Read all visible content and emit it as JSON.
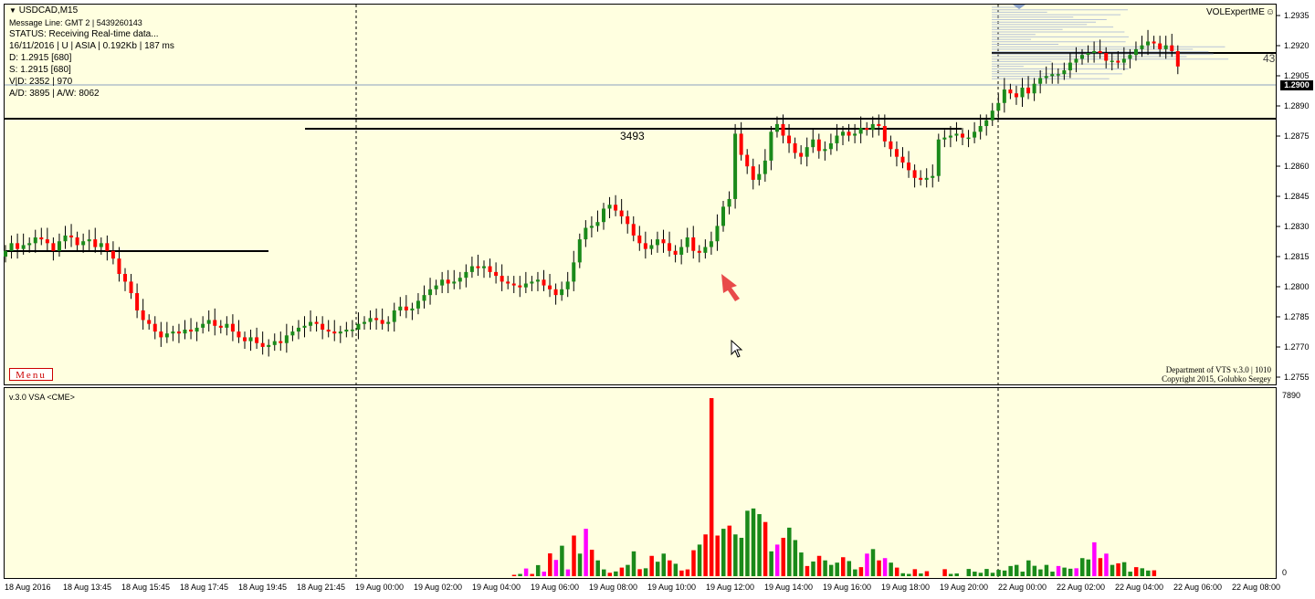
{
  "chart": {
    "symbol_title": "USDCAD,M15",
    "info_lines": [
      "Message Line: GMT 2  |  5439260143",
      "STATUS:  Receiving Real-time data...",
      "16/11/2016 | U | ASIA | 0.192Kb | 187 ms",
      "D: 1.2915  [680]",
      "S: 1.2915  [680]",
      "V|D: 2352 | 970",
      "A/D: 3895 | A/W: 8062"
    ],
    "menu_label": "Menu",
    "ea_label": "VOLExpertME",
    "credits_line1": "Department of VTS  v.3.0 | 1010",
    "credits_line2": "Copyright 2015, Golubko Sergey",
    "level_label": "3493",
    "mini_count": "43",
    "current_price": "1.2900",
    "indicator_label": "v.3.0 VSA <CME>",
    "volume_max_label": "7890",
    "volume_zero_label": "0"
  },
  "price_axis_ticks": [
    "1.2935",
    "1.2920",
    "1.2905",
    "1.2890",
    "1.2875",
    "1.2860",
    "1.2845",
    "1.2830",
    "1.2815",
    "1.2800",
    "1.2785",
    "1.2770",
    "1.2755"
  ],
  "time_axis_labels": [
    "18 Aug 2016",
    "18 Aug 13:45",
    "18 Aug 15:45",
    "18 Aug 17:45",
    "18 Aug 19:45",
    "18 Aug 21:45",
    "19 Aug 00:00",
    "19 Aug 02:00",
    "19 Aug 04:00",
    "19 Aug 06:00",
    "19 Aug 08:00",
    "19 Aug 10:00",
    "19 Aug 12:00",
    "19 Aug 14:00",
    "19 Aug 16:00",
    "19 Aug 18:00",
    "19 Aug 20:00",
    "22 Aug 00:00",
    "22 Aug 02:00",
    "22 Aug 04:00",
    "22 Aug 06:00",
    "22 Aug 08:00"
  ],
  "colors": {
    "bull": "#1a8a1a",
    "bear": "#ff0000",
    "climax": "#ff00ff",
    "background": "#ffffe0",
    "arrow": "#e84a4a"
  },
  "chart_data": {
    "type": "candlestick",
    "price_range": [
      1.2748,
      1.2941
    ],
    "closes": [
      1.2818,
      1.2822,
      1.2819,
      1.2821,
      1.2822,
      1.2825,
      1.2824,
      1.2822,
      1.2818,
      1.2823,
      1.2826,
      1.2825,
      1.2821,
      1.2823,
      1.2824,
      1.282,
      1.2822,
      1.2818,
      1.2814,
      1.2806,
      1.2802,
      1.2796,
      1.2787,
      1.2782,
      1.278,
      1.2776,
      1.2773,
      1.2775,
      1.2776,
      1.2775,
      1.2777,
      1.2776,
      1.2778,
      1.278,
      1.2782,
      1.2779,
      1.2778,
      1.278,
      1.2776,
      1.2773,
      1.2771,
      1.2773,
      1.277,
      1.2768,
      1.2769,
      1.2771,
      1.277,
      1.2774,
      1.2776,
      1.2778,
      1.2779,
      1.2781,
      1.278,
      1.2777,
      1.2776,
      1.2775,
      1.2776,
      1.2777,
      1.2777,
      1.278,
      1.2781,
      1.2783,
      1.2782,
      1.278,
      1.2781,
      1.2787,
      1.2789,
      1.2787,
      1.2788,
      1.2792,
      1.2795,
      1.2798,
      1.28,
      1.2803,
      1.2801,
      1.2802,
      1.2804,
      1.2807,
      1.281,
      1.2809,
      1.281,
      1.2807,
      1.2805,
      1.2802,
      1.2801,
      1.28,
      1.2799,
      1.2801,
      1.2802,
      1.2803,
      1.28,
      1.2798,
      1.2795,
      1.2798,
      1.2802,
      1.2812,
      1.2824,
      1.283,
      1.2831,
      1.2833,
      1.284,
      1.2842,
      1.2839,
      1.2836,
      1.2832,
      1.2826,
      1.2822,
      1.2819,
      1.2821,
      1.2824,
      1.2822,
      1.2818,
      1.2816,
      1.282,
      1.2825,
      1.2818,
      1.2817,
      1.282,
      1.2823,
      1.2831,
      1.2841,
      1.2845,
      1.2879,
      1.2868,
      1.2862,
      1.2855,
      1.2858,
      1.2865,
      1.288,
      1.2884,
      1.2878,
      1.2874,
      1.2869,
      1.2867,
      1.2872,
      1.2876,
      1.287,
      1.2871,
      1.2874,
      1.2878,
      1.288,
      1.2878,
      1.2879,
      1.2882,
      1.2881,
      1.2884,
      1.2883,
      1.2875,
      1.2871,
      1.2867,
      1.2864,
      1.286,
      1.2856,
      1.2855,
      1.2856,
      1.2857,
      1.2876,
      1.2877,
      1.2878,
      1.2879,
      1.2877,
      1.2877,
      1.288,
      1.2883,
      1.2886,
      1.2891,
      1.2895,
      1.2902,
      1.29,
      1.2898,
      1.2903,
      1.29,
      1.2905,
      1.2908,
      1.2909,
      1.291,
      1.291,
      1.2912,
      1.2916,
      1.2918,
      1.292,
      1.2921,
      1.2922,
      1.2921,
      1.2917,
      1.2917,
      1.2916,
      1.2918,
      1.292,
      1.2923,
      1.2925,
      1.2927,
      1.2926,
      1.2923,
      1.2925,
      1.2922,
      1.2914
    ],
    "volumes": [
      0,
      0,
      0,
      0,
      0,
      0,
      0,
      0,
      0,
      0,
      0,
      0,
      0,
      0,
      0,
      0,
      0,
      0,
      0,
      0,
      0,
      0,
      0,
      0,
      0,
      0,
      0,
      0,
      0,
      0,
      0,
      0,
      0,
      0,
      0,
      0,
      0,
      0,
      0,
      0,
      0,
      0,
      0,
      0,
      0,
      0,
      0,
      0,
      0,
      0,
      0,
      0,
      0,
      0,
      0,
      0,
      0,
      0,
      0,
      0,
      0,
      0,
      0,
      0,
      0,
      0,
      0,
      0,
      0,
      0,
      0,
      0,
      0,
      0,
      0,
      0,
      0,
      0,
      0,
      0,
      0,
      0,
      0,
      0,
      0,
      60,
      100,
      340,
      100,
      490,
      200,
      1010,
      720,
      1350,
      300,
      1800,
      1000,
      2100,
      1170,
      700,
      300,
      150,
      210,
      380,
      500,
      1100,
      310,
      350,
      900,
      640,
      1000,
      700,
      550,
      250,
      300,
      1150,
      1400,
      1850,
      7890,
      1800,
      2100,
      2240,
      1850,
      1700,
      2900,
      3000,
      2750,
      2400,
      1100,
      1400,
      1700,
      2150,
      1600,
      1050,
      450,
      650,
      900,
      700,
      500,
      600,
      840,
      670,
      300,
      400,
      1000,
      1200,
      700,
      800,
      600,
      380,
      130,
      100,
      310,
      120,
      220,
      0,
      0,
      310,
      100,
      120,
      0,
      320,
      200,
      150,
      320,
      150,
      280,
      250,
      450,
      500,
      200,
      700,
      460,
      300,
      500,
      200,
      450,
      380,
      330,
      350,
      800,
      740,
      1500,
      800,
      1000,
      500,
      570,
      620,
      200,
      400,
      350,
      250,
      260
    ],
    "volume_types": [
      "g",
      "g",
      "g",
      "g",
      "g",
      "g",
      "g",
      "g",
      "g",
      "g",
      "g",
      "g",
      "g",
      "g",
      "g",
      "g",
      "g",
      "g",
      "g",
      "g",
      "g",
      "g",
      "g",
      "g",
      "g",
      "g",
      "g",
      "g",
      "g",
      "g",
      "g",
      "g",
      "g",
      "g",
      "g",
      "g",
      "g",
      "g",
      "g",
      "g",
      "g",
      "g",
      "g",
      "g",
      "g",
      "g",
      "g",
      "g",
      "g",
      "g",
      "g",
      "g",
      "g",
      "g",
      "g",
      "g",
      "g",
      "g",
      "g",
      "g",
      "g",
      "g",
      "g",
      "g",
      "g",
      "g",
      "g",
      "g",
      "g",
      "g",
      "g",
      "g",
      "g",
      "g",
      "g",
      "g",
      "g",
      "g",
      "g",
      "g",
      "g",
      "g",
      "g",
      "g",
      "g",
      "r",
      "g",
      "m",
      "r",
      "g",
      "m",
      "r",
      "m",
      "g",
      "m",
      "r",
      "g",
      "m",
      "r",
      "g",
      "g",
      "r",
      "g",
      "r",
      "g",
      "g",
      "r",
      "g",
      "r",
      "g",
      "g",
      "r",
      "g",
      "r",
      "r",
      "r",
      "g",
      "r",
      "r",
      "r",
      "g",
      "r",
      "g",
      "g",
      "g",
      "g",
      "g",
      "r",
      "g",
      "m",
      "r",
      "g",
      "g",
      "g",
      "r",
      "g",
      "r",
      "g",
      "g",
      "g",
      "r",
      "g",
      "g",
      "r",
      "m",
      "g",
      "r",
      "m",
      "g",
      "r",
      "g",
      "g",
      "r",
      "g",
      "r",
      "g",
      "g",
      "r",
      "g",
      "g",
      "g",
      "g",
      "g",
      "g",
      "g",
      "g",
      "g",
      "g",
      "g",
      "g",
      "g",
      "g",
      "g",
      "g",
      "g",
      "g",
      "m",
      "g",
      "g",
      "m",
      "g",
      "g",
      "m",
      "r",
      "m",
      "g",
      "r",
      "g",
      "g",
      "r",
      "g",
      "g",
      "r",
      "g",
      "r",
      "g"
    ]
  }
}
